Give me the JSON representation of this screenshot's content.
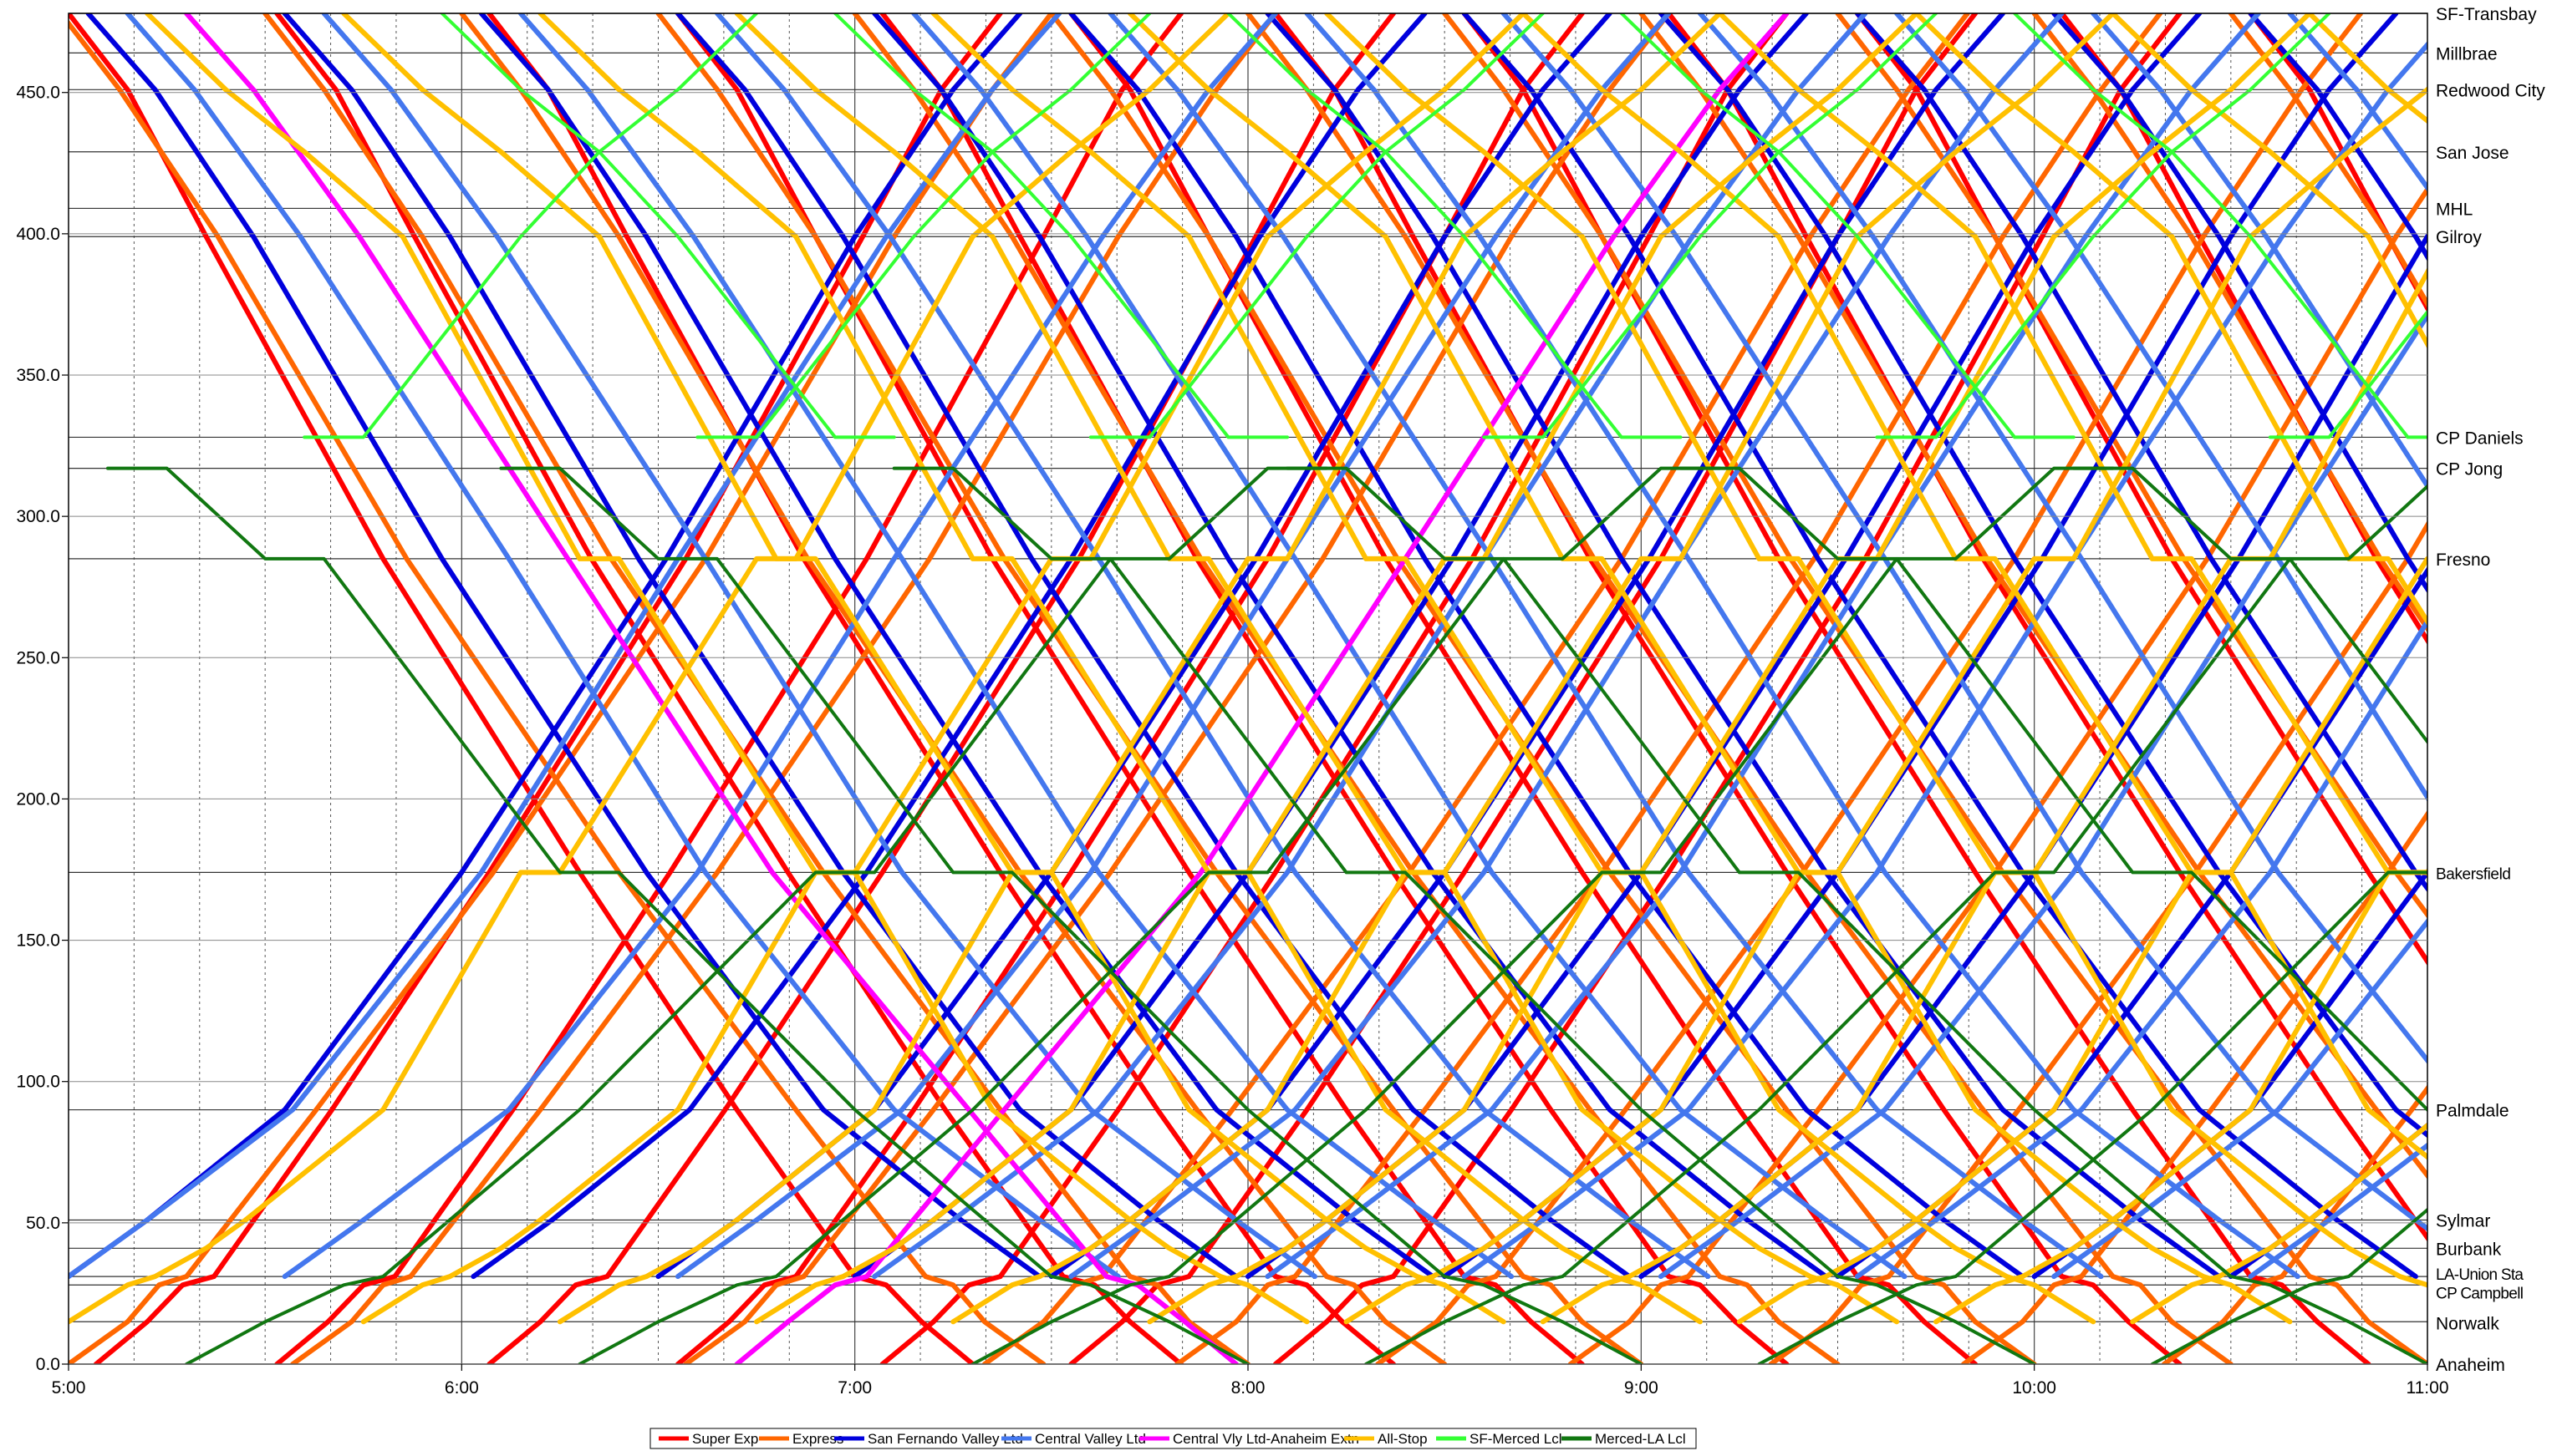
{
  "chart_data": {
    "type": "line",
    "title": "",
    "xlabel": "",
    "ylabel": "",
    "x_range_hours": [
      5,
      11
    ],
    "ylim": [
      0,
      478
    ],
    "x_ticks": [
      "5:00",
      "6:00",
      "7:00",
      "8:00",
      "9:00",
      "10:00",
      "11:00"
    ],
    "y_ticks": [
      "0.0",
      "50.0",
      "100.0",
      "150.0",
      "200.0",
      "250.0",
      "300.0",
      "350.0",
      "400.0",
      "450.0"
    ],
    "grid": {
      "vertical_minor_minutes": 10,
      "dashed": true
    },
    "stations": [
      {
        "name": "SF-Transbay",
        "mile": 478
      },
      {
        "name": "Millbrae",
        "mile": 464
      },
      {
        "name": "Redwood City",
        "mile": 451
      },
      {
        "name": "San Jose",
        "mile": 429
      },
      {
        "name": "MHL",
        "mile": 409
      },
      {
        "name": "Gilroy",
        "mile": 399
      },
      {
        "name": "CP Daniels",
        "mile": 328
      },
      {
        "name": "CP Jong",
        "mile": 317
      },
      {
        "name": "Fresno",
        "mile": 285
      },
      {
        "name": "Bakersfield",
        "mile": 174
      },
      {
        "name": "Palmdale",
        "mile": 90
      },
      {
        "name": "Sylmar",
        "mile": 51
      },
      {
        "name": "Burbank",
        "mile": 41
      },
      {
        "name": "LA-Union Sta",
        "mile": 31
      },
      {
        "name": "CP Campbell",
        "mile": 28
      },
      {
        "name": "Norwalk",
        "mile": 15
      },
      {
        "name": "Anaheim",
        "mile": 0
      }
    ],
    "series": [
      {
        "name": "Super Exp",
        "color": "#ff0000",
        "width": 6,
        "trips": {
          "north_from": [
            5.07,
            5.53,
            6.07,
            6.55,
            7.07,
            7.55,
            8.07
          ],
          "south_from": [
            5.0,
            5.53,
            6.07,
            6.55,
            7.07,
            7.55,
            8.07,
            8.55,
            9.07,
            9.55,
            10.07,
            10.55
          ]
        },
        "north_profile": [
          [
            0,
            0
          ],
          [
            0.13,
            15
          ],
          [
            0.22,
            28
          ],
          [
            0.3,
            31
          ],
          [
            0.6,
            90
          ],
          [
            1.0,
            174
          ],
          [
            1.5,
            285
          ],
          [
            1.95,
            399
          ],
          [
            2.15,
            451
          ],
          [
            2.3,
            478
          ]
        ]
      },
      {
        "name": "Express",
        "color": "#ff6600",
        "width": 6,
        "trips": {
          "north_from": [
            5.0,
            5.57,
            6.57,
            7.33,
            7.82,
            8.33,
            8.82,
            9.33,
            9.82,
            10.33
          ],
          "south_from": [
            4.98,
            5.5,
            6.0,
            6.5,
            7.0,
            7.5,
            8.0,
            8.5,
            9.0,
            9.5,
            10.0,
            10.5
          ]
        },
        "north_profile": [
          [
            0,
            0
          ],
          [
            0.15,
            15
          ],
          [
            0.23,
            28
          ],
          [
            0.3,
            31
          ],
          [
            0.63,
            90
          ],
          [
            1.08,
            174
          ],
          [
            1.62,
            285
          ],
          [
            2.1,
            399
          ],
          [
            2.35,
            451
          ],
          [
            2.5,
            478
          ]
        ]
      },
      {
        "name": "San Fernando Valley Ltd",
        "color": "#0000dd",
        "width": 6,
        "trips": {
          "north_from": [
            5.0,
            6.03,
            6.5,
            7.0,
            7.5,
            8.0,
            8.5,
            9.0,
            9.5,
            10.0,
            10.5
          ],
          "south_from": [
            5.05,
            5.55,
            6.05,
            6.55,
            7.05,
            7.55,
            8.05,
            8.55,
            9.05,
            9.55,
            10.05,
            10.55
          ]
        },
        "north_profile": [
          [
            0,
            31
          ],
          [
            0.1,
            41
          ],
          [
            0.2,
            51
          ],
          [
            0.55,
            90
          ],
          [
            1.0,
            174
          ],
          [
            1.52,
            285
          ],
          [
            2.0,
            399
          ],
          [
            2.25,
            451
          ],
          [
            2.42,
            478
          ]
        ]
      },
      {
        "name": "Central Valley Ltd",
        "color": "#4477ee",
        "width": 6,
        "trips": {
          "north_from": [
            5.0,
            5.55,
            6.55,
            7.05,
            7.55,
            8.05,
            8.55,
            9.05,
            9.55,
            10.05,
            10.55
          ],
          "south_from": [
            5.15,
            5.65,
            6.15,
            6.65,
            7.15,
            7.65,
            8.15,
            8.65,
            9.15,
            9.65,
            10.15,
            10.65
          ]
        },
        "north_profile": [
          [
            0,
            31
          ],
          [
            0.1,
            41
          ],
          [
            0.2,
            51
          ],
          [
            0.57,
            90
          ],
          [
            1.05,
            174
          ],
          [
            1.55,
            285
          ],
          [
            2.08,
            399
          ],
          [
            2.35,
            451
          ],
          [
            2.52,
            478
          ]
        ]
      },
      {
        "name": "Central Vly Ltd-Anaheim Extn",
        "color": "#ff00ff",
        "width": 6,
        "trips": {
          "north_from": [
            6.7
          ],
          "south_from": [
            5.3
          ]
        },
        "north_profile": [
          [
            0,
            0
          ],
          [
            0.13,
            15
          ],
          [
            0.25,
            28
          ],
          [
            0.33,
            31
          ],
          [
            0.68,
            90
          ],
          [
            1.18,
            174
          ],
          [
            1.7,
            285
          ],
          [
            2.23,
            399
          ],
          [
            2.5,
            451
          ],
          [
            2.67,
            478
          ]
        ]
      },
      {
        "name": "All-Stop",
        "color": "#ffc000",
        "width": 6,
        "trips": {
          "north_from": [
            5.0,
            5.75,
            6.25,
            6.75,
            7.25,
            7.75,
            8.25,
            8.75,
            9.25,
            9.75,
            10.25
          ],
          "south_from": [
            5.2,
            5.7,
            6.2,
            6.7,
            7.2,
            7.7,
            8.2,
            8.7,
            9.2,
            9.7,
            10.2,
            10.7
          ]
        },
        "north_profile": [
          [
            0,
            15
          ],
          [
            0.15,
            28
          ],
          [
            0.22,
            31
          ],
          [
            0.35,
            41
          ],
          [
            0.45,
            51
          ],
          [
            0.8,
            90
          ],
          [
            1.15,
            174
          ],
          [
            1.25,
            174
          ],
          [
            1.75,
            285
          ],
          [
            1.85,
            285
          ],
          [
            2.3,
            399
          ],
          [
            2.55,
            429
          ],
          [
            2.75,
            451
          ],
          [
            2.95,
            478
          ]
        ]
      },
      {
        "name": "SF-Merced Lcl",
        "color": "#33ff33",
        "width": 4,
        "trips": {
          "north_from": [
            5.6,
            6.6,
            7.6,
            8.6,
            9.6,
            10.6
          ],
          "south_from": [
            5.95,
            6.95,
            7.95,
            8.95,
            9.95
          ]
        },
        "north_profile": [
          [
            0,
            328
          ],
          [
            0.15,
            328
          ],
          [
            0.55,
            399
          ],
          [
            0.75,
            429
          ],
          [
            0.95,
            451
          ],
          [
            1.15,
            478
          ]
        ]
      },
      {
        "name": "Merced-LA Lcl",
        "color": "#117711",
        "width": 4,
        "trips": {
          "north_from": [
            5.3,
            6.3,
            7.3,
            8.3,
            9.3,
            10.3
          ],
          "south_from": [
            5.1,
            6.1,
            7.1,
            8.1,
            9.1,
            10.1
          ]
        },
        "north_profile": [
          [
            0,
            0
          ],
          [
            0.2,
            15
          ],
          [
            0.4,
            28
          ],
          [
            0.5,
            31
          ],
          [
            1.0,
            90
          ],
          [
            1.6,
            174
          ],
          [
            1.75,
            174
          ],
          [
            2.35,
            285
          ],
          [
            2.5,
            285
          ],
          [
            2.75,
            317
          ],
          [
            2.9,
            317
          ]
        ]
      }
    ]
  },
  "legend": [
    {
      "label": "Super Exp",
      "color": "#ff0000"
    },
    {
      "label": "Express",
      "color": "#ff6600"
    },
    {
      "label": "San Fernando Valley Ltd",
      "color": "#0000dd"
    },
    {
      "label": "Central Valley Ltd",
      "color": "#4477ee"
    },
    {
      "label": "Central Vly Ltd-Anaheim Extn",
      "color": "#ff00ff"
    },
    {
      "label": "All-Stop",
      "color": "#ffc000"
    },
    {
      "label": "SF-Merced Lcl",
      "color": "#33ff33"
    },
    {
      "label": "Merced-LA Lcl",
      "color": "#117711"
    }
  ]
}
